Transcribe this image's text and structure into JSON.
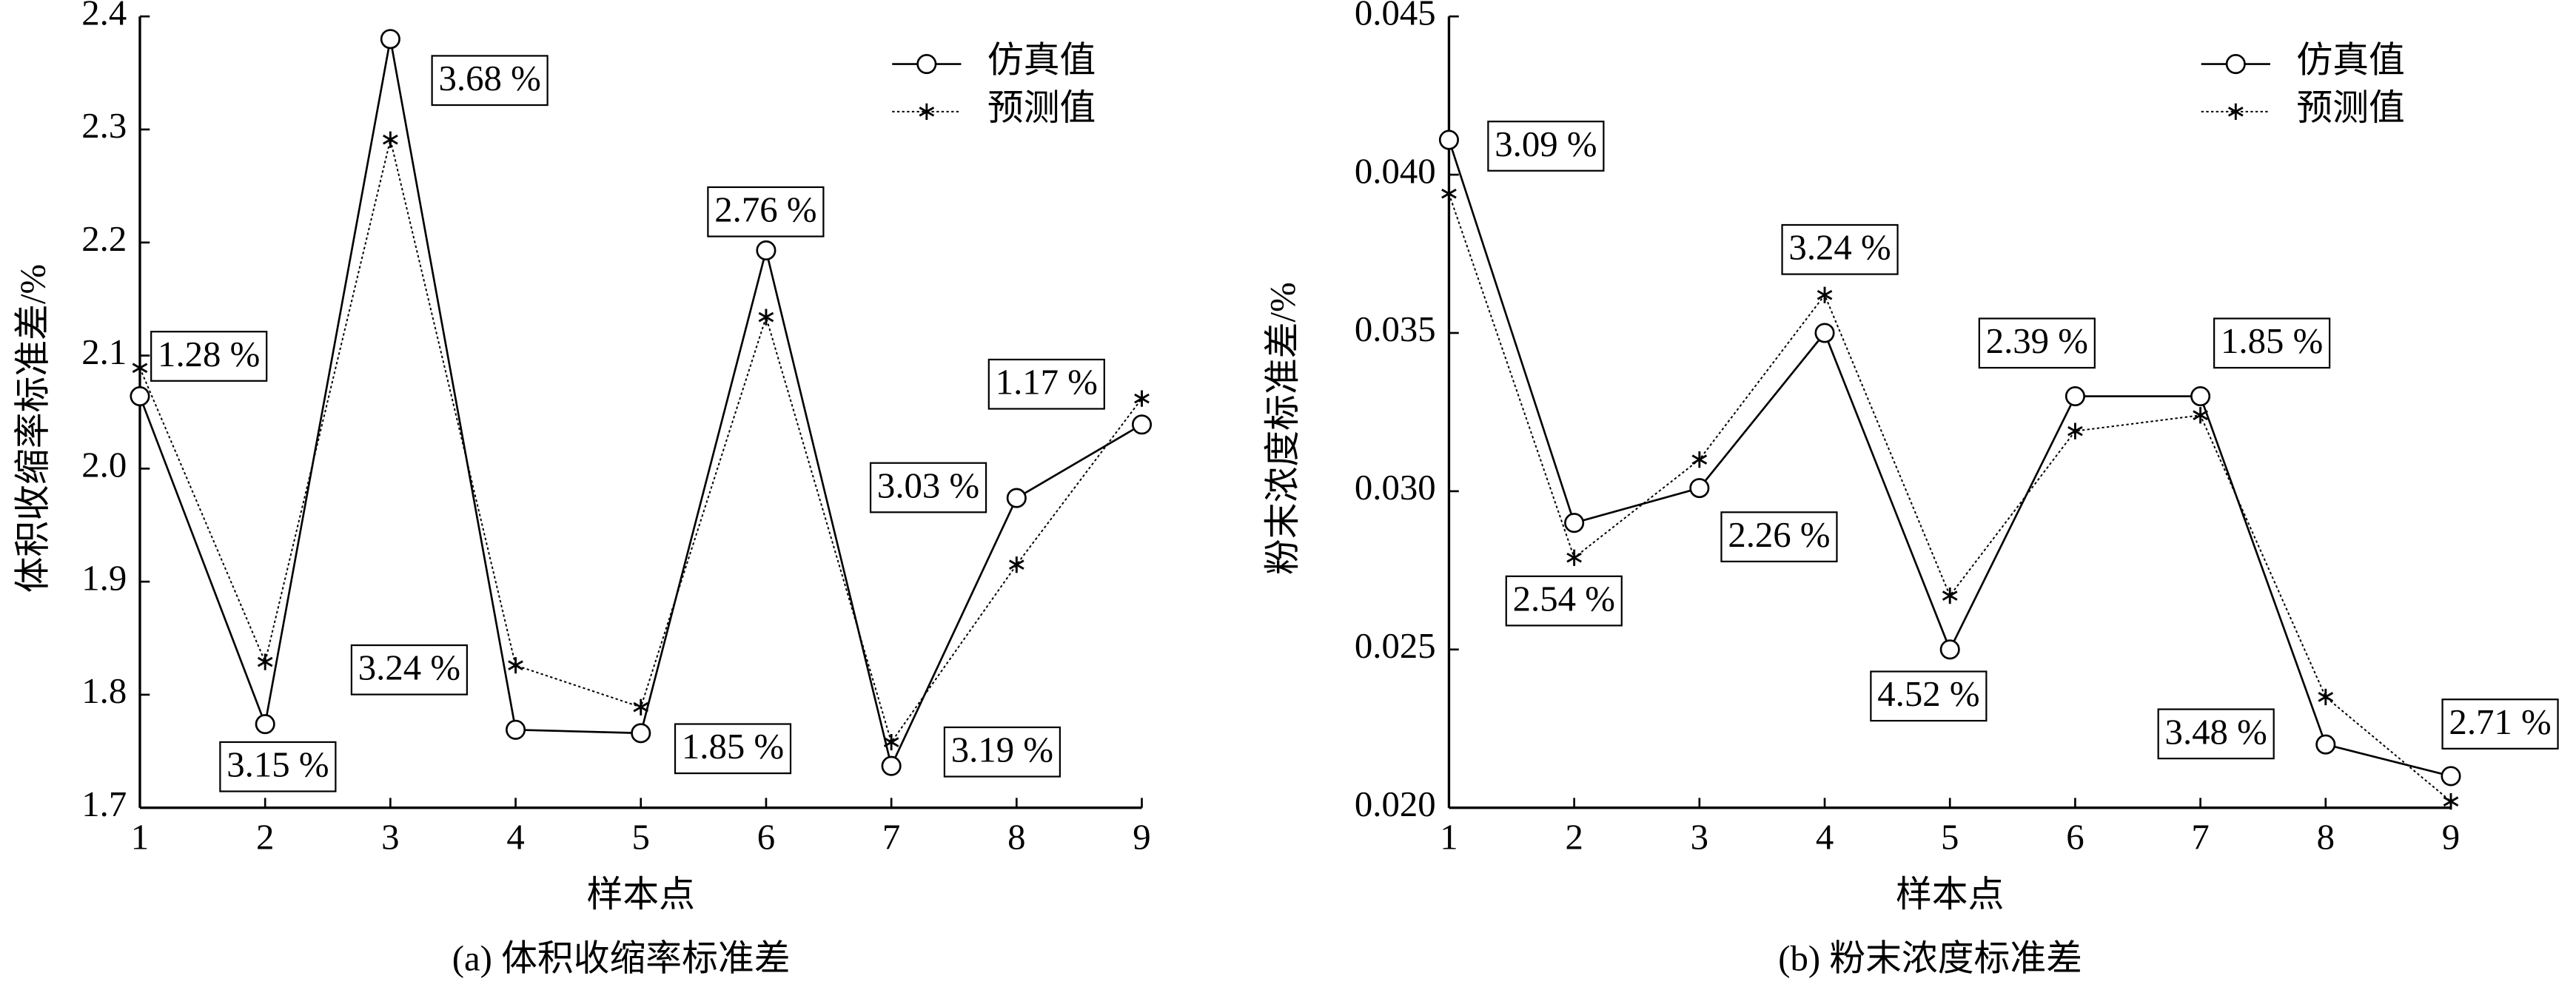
{
  "chart_data": [
    {
      "type": "line",
      "caption": "(a) 体积收缩率标准差",
      "xlabel": "样本点",
      "ylabel": "体积收缩率标准差/%",
      "x": [
        1,
        2,
        3,
        4,
        5,
        6,
        7,
        8,
        9
      ],
      "xlim": [
        1,
        9
      ],
      "xticks": [
        1,
        2,
        3,
        4,
        5,
        6,
        7,
        8,
        9
      ],
      "ylim": [
        1.7,
        2.4
      ],
      "yticks": [
        1.7,
        1.8,
        1.9,
        {
          "value": 2,
          "label": "2.0"
        },
        2.1,
        2.2,
        2.3,
        2.4
      ],
      "legend": "upper right",
      "series": [
        {
          "name": "仿真值",
          "color": "#000000",
          "marker": "circle",
          "linestyle": "solid",
          "values": [
            2.064,
            1.774,
            2.38,
            1.769,
            1.766,
            2.193,
            1.737,
            1.974,
            2.039
          ]
        },
        {
          "name": "预测值",
          "color": "#000000",
          "marker": "star",
          "linestyle": "dotted",
          "values": [
            2.089,
            1.829,
            2.291,
            1.826,
            1.789,
            2.134,
            1.758,
            1.915,
            2.062
          ]
        }
      ],
      "annotations": [
        "1.28 %",
        "3.15 %",
        "3.68 %",
        "3.24 %",
        "1.85 %",
        "2.76 %",
        "3.19 %",
        "3.03 %",
        "1.17 %"
      ]
    },
    {
      "type": "line",
      "caption": "(b) 粉末浓度标准差",
      "xlabel": "样本点",
      "ylabel": "粉末浓度标准差/%",
      "x": [
        1,
        2,
        3,
        4,
        5,
        6,
        7,
        8,
        9
      ],
      "xlim": [
        1,
        9
      ],
      "xticks": [
        1,
        2,
        3,
        4,
        5,
        6,
        7,
        8,
        9
      ],
      "ylim": [
        0.02,
        0.045
      ],
      "yticks": [
        {
          "value": 0.02,
          "label": "0.020"
        },
        0.025,
        {
          "value": 0.03,
          "label": "0.030"
        },
        0.035,
        {
          "value": 0.04,
          "label": "0.040"
        },
        0.045
      ],
      "legend": "upper right",
      "series": [
        {
          "name": "仿真值",
          "color": "#000000",
          "marker": "circle",
          "linestyle": "solid",
          "values": [
            0.0411,
            0.029,
            0.0301,
            0.035,
            0.025,
            0.033,
            0.033,
            0.022,
            0.021
          ]
        },
        {
          "name": "预测值",
          "color": "#000000",
          "marker": "star",
          "linestyle": "dotted",
          "values": [
            0.0394,
            0.0279,
            0.031,
            0.0362,
            0.0267,
            0.0319,
            0.0324,
            0.0235,
            0.0202
          ]
        }
      ],
      "annotations": [
        "3.09 %",
        "2.54 %",
        "2.26 %",
        "3.24 %",
        "4.52 %",
        "2.39 %",
        "1.85 %",
        "3.48 %",
        "2.71 %"
      ]
    }
  ]
}
